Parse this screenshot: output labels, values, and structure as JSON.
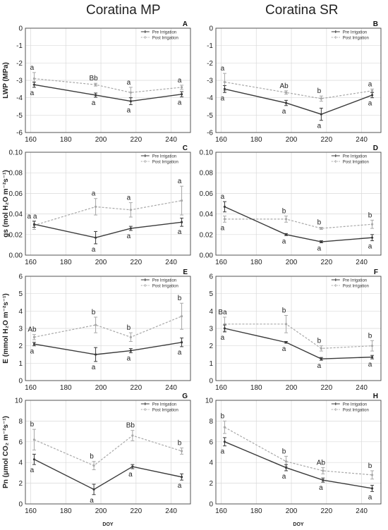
{
  "columns": [
    "Coratina MP",
    "Coratina SR"
  ],
  "legend": {
    "pre": "Pre Irrigation",
    "post": "Post Irrigation"
  },
  "colors": {
    "pre": "#3a3a3a",
    "post": "#a8a8a8",
    "axis": "#444444",
    "grid": "#d9d9d9"
  },
  "chart_data": [
    {
      "panel": "A",
      "type": "line",
      "ylabel": "LWP (MPa)",
      "xlabel": "",
      "xlim": [
        157,
        251
      ],
      "ylim": [
        -6,
        0
      ],
      "yticks": [
        -6,
        -5,
        -4,
        -3,
        -2,
        -1,
        0
      ],
      "xticks": [
        160,
        180,
        200,
        220,
        240
      ],
      "x": [
        162,
        197,
        217,
        246
      ],
      "series": [
        {
          "name": "Pre Irrigation",
          "values": [
            -3.25,
            -3.85,
            -4.2,
            -3.8
          ],
          "err": [
            0.15,
            0.12,
            0.2,
            0.15
          ]
        },
        {
          "name": "Post Irrigation",
          "values": [
            -2.9,
            -3.25,
            -3.7,
            -3.4
          ],
          "err": [
            0.35,
            0.08,
            0.3,
            0.12
          ]
        }
      ],
      "labels": [
        [
          "a",
          "a"
        ],
        [
          "Bb",
          "a"
        ],
        [
          "a",
          "a"
        ],
        [
          "a",
          "a"
        ]
      ]
    },
    {
      "panel": "B",
      "type": "line",
      "ylabel": "",
      "xlabel": "",
      "xlim": [
        157,
        251
      ],
      "ylim": [
        -6,
        0
      ],
      "yticks": [
        -6,
        -5,
        -4,
        -3,
        -2,
        -1,
        0
      ],
      "xticks": [
        160,
        180,
        200,
        220,
        240
      ],
      "x": [
        162,
        197,
        217,
        246
      ],
      "series": [
        {
          "name": "Pre Irrigation",
          "values": [
            -3.5,
            -4.3,
            -4.95,
            -3.85
          ],
          "err": [
            0.2,
            0.15,
            0.35,
            0.15
          ]
        },
        {
          "name": "Post Irrigation",
          "values": [
            -3.1,
            -3.7,
            -4.05,
            -3.6
          ],
          "err": [
            0.5,
            0.1,
            0.15,
            0.1
          ]
        }
      ],
      "labels": [
        [
          "a",
          "a"
        ],
        [
          "Ab",
          "a"
        ],
        [
          "b",
          "a"
        ],
        [
          "a",
          "a"
        ]
      ]
    },
    {
      "panel": "C",
      "type": "line",
      "ylabel": "gs (mol H₂O m⁻²s⁻¹)",
      "xlabel": "",
      "xlim": [
        157,
        251
      ],
      "ylim": [
        0,
        0.1
      ],
      "yticks": [
        0,
        0.02,
        0.04,
        0.06,
        0.08,
        0.1
      ],
      "xticks": [
        160,
        180,
        200,
        220,
        240
      ],
      "x": [
        162,
        197,
        217,
        246
      ],
      "series": [
        {
          "name": "Pre Irrigation",
          "values": [
            0.03,
            0.017,
            0.026,
            0.032
          ],
          "err": [
            0.003,
            0.006,
            0.002,
            0.004
          ]
        },
        {
          "name": "Post Irrigation",
          "values": [
            0.029,
            0.047,
            0.044,
            0.053
          ],
          "err": [
            0.004,
            0.008,
            0.007,
            0.014
          ]
        }
      ],
      "labels": [
        [
          "a a",
          ""
        ],
        [
          "a",
          "a"
        ],
        [
          "a",
          "a"
        ],
        [
          "a",
          "a"
        ]
      ]
    },
    {
      "panel": "D",
      "type": "line",
      "ylabel": "",
      "xlabel": "",
      "xlim": [
        157,
        251
      ],
      "ylim": [
        0,
        0.1
      ],
      "yticks": [
        0,
        0.02,
        0.04,
        0.06,
        0.08,
        0.1
      ],
      "xticks": [
        160,
        180,
        200,
        220,
        240
      ],
      "x": [
        162,
        197,
        217,
        246
      ],
      "series": [
        {
          "name": "Pre Irrigation",
          "values": [
            0.047,
            0.02,
            0.013,
            0.017
          ],
          "err": [
            0.005,
            0.001,
            0.001,
            0.003
          ]
        },
        {
          "name": "Post Irrigation",
          "values": [
            0.035,
            0.035,
            0.026,
            0.03
          ],
          "err": [
            0.003,
            0.003,
            0.001,
            0.004
          ]
        }
      ],
      "labels": [
        [
          "a",
          "a"
        ],
        [
          "b",
          "a"
        ],
        [
          "b",
          "a"
        ],
        [
          "b",
          "a"
        ]
      ]
    },
    {
      "panel": "E",
      "type": "line",
      "ylabel": "E (mmol H₂O m⁻²s⁻¹)",
      "xlabel": "",
      "xlim": [
        157,
        251
      ],
      "ylim": [
        0,
        6
      ],
      "yticks": [
        0,
        1,
        2,
        3,
        4,
        5,
        6
      ],
      "xticks": [
        160,
        180,
        200,
        220,
        240
      ],
      "x": [
        162,
        197,
        217,
        246
      ],
      "series": [
        {
          "name": "Pre Irrigation",
          "values": [
            2.1,
            1.5,
            1.72,
            2.2
          ],
          "err": [
            0.1,
            0.4,
            0.12,
            0.25
          ]
        },
        {
          "name": "Post Irrigation",
          "values": [
            2.5,
            3.2,
            2.5,
            3.7
          ],
          "err": [
            0.15,
            0.45,
            0.25,
            0.75
          ]
        }
      ],
      "labels": [
        [
          "Ab",
          "a"
        ],
        [
          "b",
          "a"
        ],
        [
          "b",
          "a"
        ],
        [
          "b",
          "a"
        ]
      ]
    },
    {
      "panel": "F",
      "type": "line",
      "ylabel": "",
      "xlabel": "",
      "xlim": [
        157,
        251
      ],
      "ylim": [
        0,
        6
      ],
      "yticks": [
        0,
        1,
        2,
        3,
        4,
        5,
        6
      ],
      "xticks": [
        160,
        180,
        200,
        220,
        240
      ],
      "x": [
        162,
        197,
        217,
        246
      ],
      "series": [
        {
          "name": "Pre Irrigation",
          "values": [
            3.0,
            2.2,
            1.25,
            1.35
          ],
          "err": [
            0.2,
            0.05,
            0.08,
            0.1
          ]
        },
        {
          "name": "Post Irrigation",
          "values": [
            3.25,
            3.25,
            1.85,
            2.0
          ],
          "err": [
            0.4,
            0.5,
            0.15,
            0.3
          ]
        }
      ],
      "labels": [
        [
          "Ba",
          "a"
        ],
        [
          "b",
          "a"
        ],
        [
          "b",
          "a"
        ],
        [
          "b",
          "a"
        ]
      ]
    },
    {
      "panel": "G",
      "type": "line",
      "ylabel": "Pn (μmol CO₂ m⁻²s⁻¹)",
      "xlabel": "DOY",
      "xlim": [
        157,
        251
      ],
      "ylim": [
        0,
        10
      ],
      "yticks": [
        0,
        2,
        4,
        6,
        8,
        10
      ],
      "xticks": [
        160,
        180,
        200,
        220,
        240
      ],
      "x": [
        162,
        196,
        218,
        246
      ],
      "series": [
        {
          "name": "Pre Irrigation",
          "values": [
            4.3,
            1.4,
            3.6,
            2.6
          ],
          "err": [
            0.5,
            0.5,
            0.2,
            0.3
          ]
        },
        {
          "name": "Post Irrigation",
          "values": [
            6.2,
            3.7,
            6.6,
            5.1
          ],
          "err": [
            1.0,
            0.4,
            0.5,
            0.3
          ]
        }
      ],
      "labels": [
        [
          "b",
          "a"
        ],
        [
          "b",
          "a"
        ],
        [
          "Bb",
          "a"
        ],
        [
          "b",
          "a"
        ]
      ]
    },
    {
      "panel": "H",
      "type": "line",
      "ylabel": "",
      "xlabel": "DOY",
      "xlim": [
        157,
        251
      ],
      "ylim": [
        0,
        10
      ],
      "yticks": [
        0,
        2,
        4,
        6,
        8,
        10
      ],
      "xticks": [
        160,
        180,
        200,
        220,
        240
      ],
      "x": [
        162,
        197,
        218,
        246
      ],
      "series": [
        {
          "name": "Pre Irrigation",
          "values": [
            6.0,
            3.5,
            2.3,
            1.5
          ],
          "err": [
            0.4,
            0.3,
            0.2,
            0.3
          ]
        },
        {
          "name": "Post Irrigation",
          "values": [
            7.4,
            4.1,
            3.2,
            2.8
          ],
          "err": [
            0.6,
            0.5,
            0.3,
            0.4
          ]
        }
      ],
      "labels": [
        [
          "b",
          "a"
        ],
        [
          "b",
          "a"
        ],
        [
          "Ab",
          "a"
        ],
        [
          "b",
          "a"
        ]
      ]
    }
  ]
}
